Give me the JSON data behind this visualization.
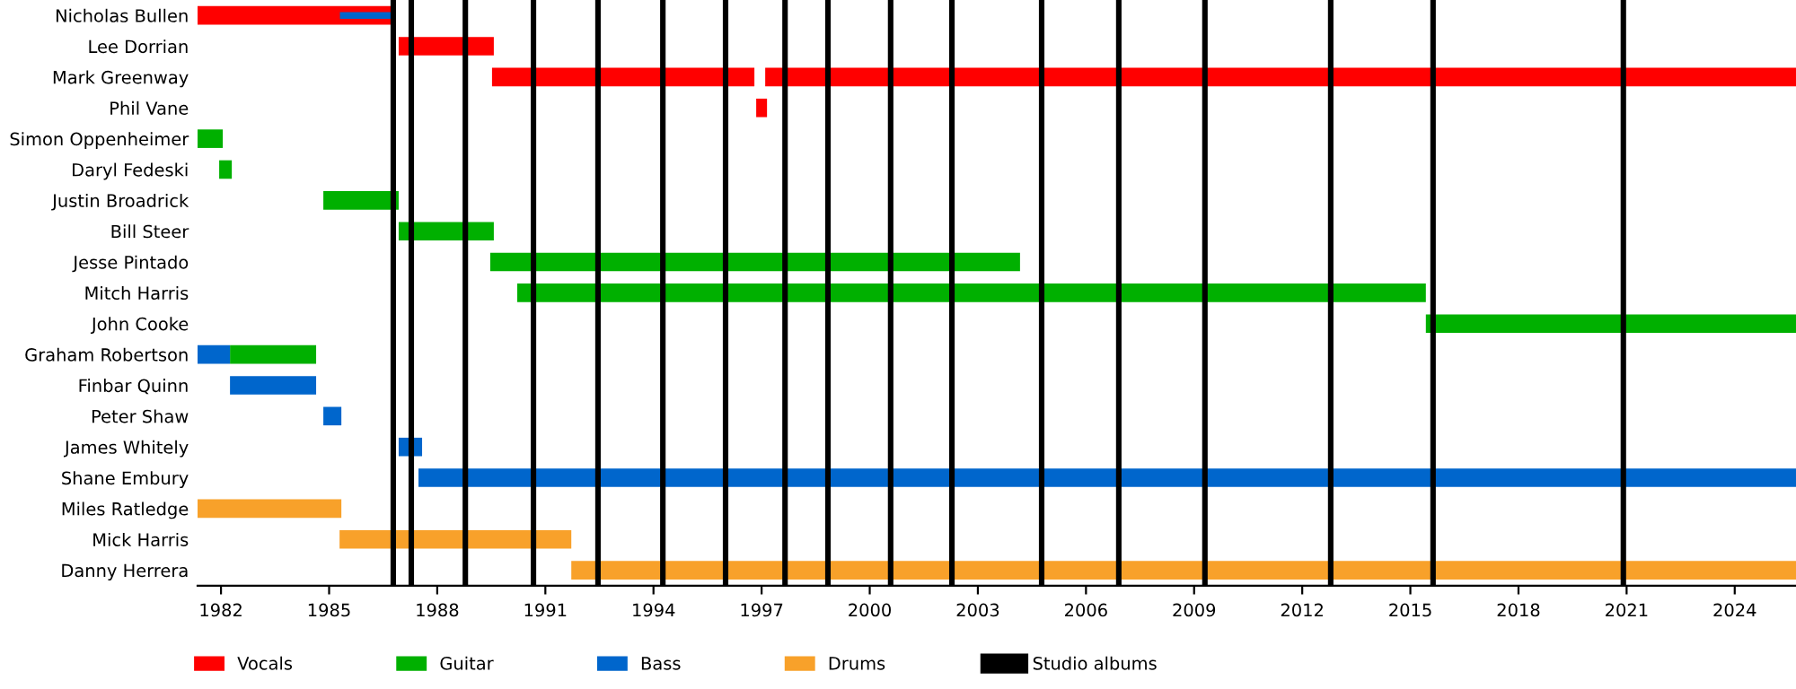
{
  "chart_data": {
    "type": "bar",
    "orientation": "horizontal",
    "categories": [
      "Nicholas Bullen",
      "Lee Dorrian",
      "Mark Greenway",
      "Phil Vane",
      "Simon Oppenheimer",
      "Daryl Fedeski",
      "Justin Broadrick",
      "Bill Steer",
      "Jesse Pintado",
      "Mitch Harris",
      "John Cooke",
      "Graham Robertson",
      "Finbar Quinn",
      "Peter Shaw",
      "James Whitely",
      "Shane Embury",
      "Miles Ratledge",
      "Mick Harris",
      "Danny Herrera"
    ],
    "series": [
      {
        "name": "Vocals",
        "color": "#ff0000",
        "base": [
          1981.35,
          1986.93,
          1989.52,
          1996.85,
          null,
          null,
          null,
          null,
          null,
          null,
          null,
          null,
          null,
          null,
          null,
          null,
          null,
          null,
          null
        ],
        "values": [
          5.48,
          2.64,
          7.28,
          0.3,
          null,
          null,
          null,
          null,
          null,
          null,
          null,
          null,
          null,
          null,
          null,
          null,
          null,
          null,
          null
        ]
      },
      {
        "color": "#ff0000",
        "base": [
          null,
          null,
          1997.1,
          null,
          null,
          null,
          null,
          null,
          null,
          null,
          null,
          null,
          null,
          null,
          null,
          null,
          null,
          null,
          null
        ],
        "values": [
          null,
          null,
          28.6,
          null,
          null,
          null,
          null,
          null,
          null,
          null,
          null,
          null,
          null,
          null,
          null,
          null,
          null,
          null,
          null
        ]
      },
      {
        "name": "Guitar",
        "color": "#00b000",
        "base": [
          null,
          null,
          null,
          null,
          1981.35,
          1981.95,
          1984.84,
          1986.93,
          1989.47,
          1990.22,
          2015.43,
          1982.25,
          null,
          null,
          null,
          null,
          null,
          null,
          null
        ],
        "values": [
          null,
          null,
          null,
          null,
          0.7,
          0.35,
          2.09,
          2.64,
          14.7,
          25.21,
          10.27,
          2.39,
          null,
          null,
          null,
          null,
          null,
          null,
          null
        ]
      },
      {
        "name": "Bass",
        "color": "#0066cc",
        "base": [
          1985.3,
          null,
          null,
          null,
          null,
          null,
          null,
          null,
          null,
          null,
          null,
          1981.35,
          1982.25,
          1984.84,
          1986.93,
          1987.48,
          null,
          null,
          null
        ],
        "values": [
          1.53,
          null,
          null,
          null,
          null,
          null,
          null,
          null,
          null,
          null,
          null,
          0.9,
          2.39,
          0.5,
          0.65,
          38.22,
          null,
          null,
          null
        ]
      },
      {
        "name": "Drums",
        "color": "#f8a12a",
        "base": [
          null,
          null,
          null,
          null,
          null,
          null,
          null,
          null,
          null,
          null,
          null,
          null,
          null,
          null,
          null,
          null,
          1981.35,
          1985.29,
          1991.72
        ],
        "values": [
          null,
          null,
          null,
          null,
          null,
          null,
          null,
          null,
          null,
          null,
          null,
          null,
          null,
          null,
          null,
          null,
          3.99,
          6.43,
          33.98
        ]
      }
    ],
    "xlim": [
      1981.35,
      2025.7
    ],
    "xticks": [
      1982,
      1985,
      1988,
      1991,
      1994,
      1997,
      2000,
      2003,
      2006,
      2009,
      2012,
      2015,
      2018,
      2021,
      2024
    ],
    "ref_lines": [
      {
        "axis": "x",
        "value": 1986.78,
        "label": "Studio albums",
        "color": "#000000"
      },
      {
        "axis": "x",
        "value": 1987.28,
        "color": "#000000"
      },
      {
        "axis": "x",
        "value": 1988.78,
        "color": "#000000"
      },
      {
        "axis": "x",
        "value": 1990.67,
        "color": "#000000"
      },
      {
        "axis": "x",
        "value": 1992.46,
        "color": "#000000"
      },
      {
        "axis": "x",
        "value": 1994.26,
        "color": "#000000"
      },
      {
        "axis": "x",
        "value": 1996.0,
        "color": "#000000"
      },
      {
        "axis": "x",
        "value": 1997.65,
        "color": "#000000"
      },
      {
        "axis": "x",
        "value": 1998.84,
        "color": "#000000"
      },
      {
        "axis": "x",
        "value": 2000.58,
        "color": "#000000"
      },
      {
        "axis": "x",
        "value": 2002.28,
        "color": "#000000"
      },
      {
        "axis": "x",
        "value": 2004.77,
        "color": "#000000"
      },
      {
        "axis": "x",
        "value": 2006.91,
        "color": "#000000"
      },
      {
        "axis": "x",
        "value": 2009.3,
        "color": "#000000"
      },
      {
        "axis": "x",
        "value": 2012.79,
        "color": "#000000"
      },
      {
        "axis": "x",
        "value": 2015.63,
        "color": "#000000"
      },
      {
        "axis": "x",
        "value": 2020.91,
        "color": "#000000"
      }
    ],
    "legend": "bottom"
  }
}
